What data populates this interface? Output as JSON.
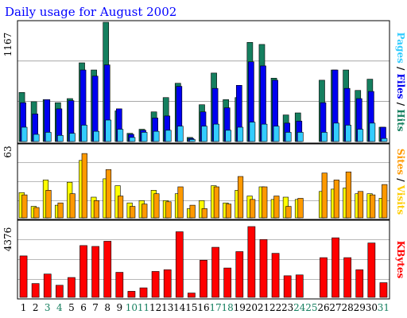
{
  "title": "Daily usage for August 2002",
  "colors": {
    "hits": "#157F5F",
    "files": "#0000F0",
    "pages": "#33CCFF",
    "visits": "#FFFF00",
    "sites": "#FF9900",
    "kbytes": "#FF0000",
    "weekend": "#157F5F",
    "weekday": "#000000",
    "title": "#0000FF"
  },
  "side_labels": {
    "top": [
      {
        "text": "Pages",
        "color": "#33CCFF"
      },
      {
        "text": " / ",
        "color": "#000000"
      },
      {
        "text": "Files",
        "color": "#0000F0"
      },
      {
        "text": " / ",
        "color": "#000000"
      },
      {
        "text": "Hits",
        "color": "#157F5F"
      }
    ],
    "middle": [
      {
        "text": "Sites",
        "color": "#FF9900"
      },
      {
        "text": " / ",
        "color": "#000000"
      },
      {
        "text": "Visits",
        "color": "#FFCC00"
      }
    ],
    "bottom": [
      {
        "text": "KBytes",
        "color": "#FF0000"
      }
    ]
  },
  "chart_data": {
    "type": "bar",
    "title": "Daily usage for August 2002",
    "categories": [
      "1",
      "2",
      "3",
      "4",
      "5",
      "6",
      "7",
      "8",
      "9",
      "10",
      "11",
      "12",
      "13",
      "14",
      "15",
      "16",
      "17",
      "18",
      "19",
      "20",
      "21",
      "22",
      "23",
      "24",
      "25",
      "26",
      "27",
      "28",
      "29",
      "30",
      "31"
    ],
    "weekend_days": [
      "3",
      "4",
      "10",
      "11",
      "17",
      "18",
      "24",
      "25",
      "31"
    ],
    "panels": [
      {
        "name": "hits-files-pages",
        "ymax_label": "1167",
        "ylim": [
          0,
          1167
        ],
        "series": [
          {
            "name": "Hits",
            "values": [
              480,
              390,
              410,
              380,
              420,
              770,
              700,
              1167,
              300,
              80,
              120,
              290,
              430,
              570,
              40,
              360,
              670,
              410,
              430,
              970,
              950,
              620,
              260,
              280,
              0,
              600,
              700,
              700,
              500,
              610,
              140
            ]
          },
          {
            "name": "Files",
            "values": [
              380,
              270,
              410,
              320,
              400,
              700,
              640,
              750,
              320,
              70,
              110,
              230,
              250,
              540,
              30,
              290,
              520,
              330,
              550,
              780,
              740,
              600,
              180,
              200,
              0,
              380,
              700,
              520,
              420,
              490,
              140
            ]
          },
          {
            "name": "Pages",
            "values": [
              140,
              70,
              90,
              60,
              80,
              160,
              100,
              210,
              120,
              40,
              90,
              100,
              110,
              150,
              20,
              150,
              170,
              110,
              140,
              190,
              170,
              150,
              90,
              90,
              0,
              90,
              180,
              160,
              120,
              180,
              30
            ]
          }
        ]
      },
      {
        "name": "visits-sites",
        "ymax_label": "63",
        "ylim": [
          0,
          63
        ],
        "series": [
          {
            "name": "Visits",
            "values": [
              22,
              10,
              33,
              11,
              31,
              50,
              18,
              34,
              28,
              13,
              15,
              24,
              15,
              21,
              8,
              15,
              28,
              13,
              24,
              19,
              27,
              16,
              18,
              16,
              0,
              23,
              25,
              26,
              21,
              21,
              17
            ]
          },
          {
            "name": "Sites",
            "values": [
              20,
              9,
              24,
              13,
              21,
              56,
              15,
              42,
              19,
              10,
              12,
              21,
              14,
              27,
              11,
              8,
              27,
              12,
              36,
              16,
              27,
              19,
              10,
              17,
              0,
              39,
              33,
              40,
              23,
              20,
              29
            ]
          }
        ]
      },
      {
        "name": "kbytes",
        "ymax_label": "4376",
        "ylim": [
          0,
          4376
        ],
        "series": [
          {
            "name": "KBytes",
            "values": [
              2400,
              800,
              1350,
              700,
              1150,
              3000,
              2950,
              3250,
              1450,
              350,
              550,
              1500,
              1600,
              3800,
              250,
              2150,
              2900,
              1700,
              2650,
              4100,
              3350,
              2550,
              1250,
              1300,
              0,
              2300,
              3450,
              2300,
              1600,
              3150,
              850
            ]
          }
        ]
      }
    ]
  }
}
